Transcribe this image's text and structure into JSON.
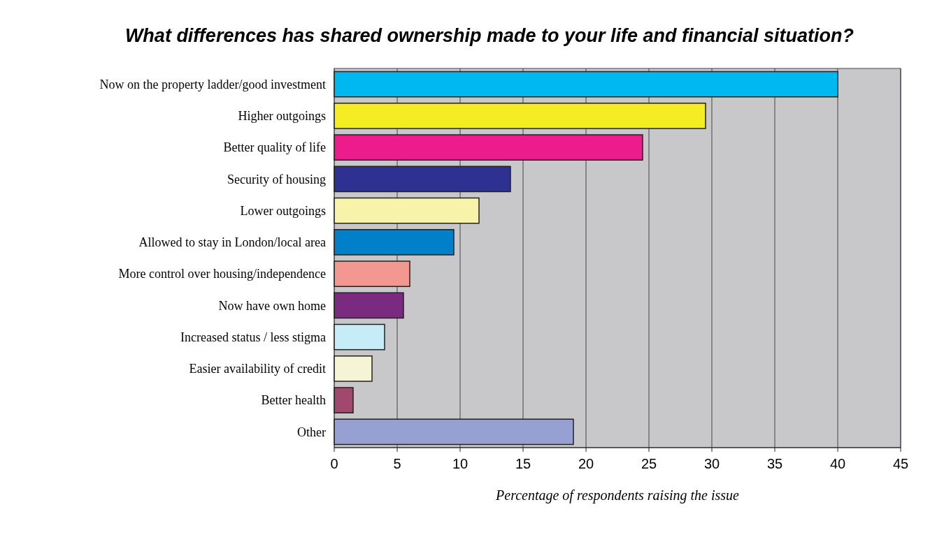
{
  "chart_data": {
    "type": "bar",
    "orientation": "horizontal",
    "title": "What differences has shared ownership made to your life and financial situation?",
    "xlabel": "Percentage of respondents raising the issue",
    "categories": [
      "Now on the property ladder/good investment",
      "Higher outgoings",
      "Better quality of life",
      "Security of housing",
      "Lower outgoings",
      "Allowed to stay in London/local area",
      "More control over housing/independence",
      "Now have own home",
      "Increased status / less stigma",
      "Easier availability of credit",
      "Better health",
      "Other"
    ],
    "values": [
      40,
      29.5,
      24.5,
      14,
      11.5,
      9.5,
      6,
      5.5,
      4,
      3,
      1.5,
      19
    ],
    "colors": [
      "#00b8f0",
      "#f5ec23",
      "#ec1c8c",
      "#2e3192",
      "#f7f3a8",
      "#0080c8",
      "#f29890",
      "#7a2a7f",
      "#c6ecf8",
      "#f5f5d6",
      "#a0486e",
      "#96a0d2"
    ],
    "xlim": [
      0,
      45
    ],
    "xticks": [
      0,
      5,
      10,
      15,
      20,
      25,
      30,
      35,
      40,
      45
    ],
    "grid": "x"
  }
}
